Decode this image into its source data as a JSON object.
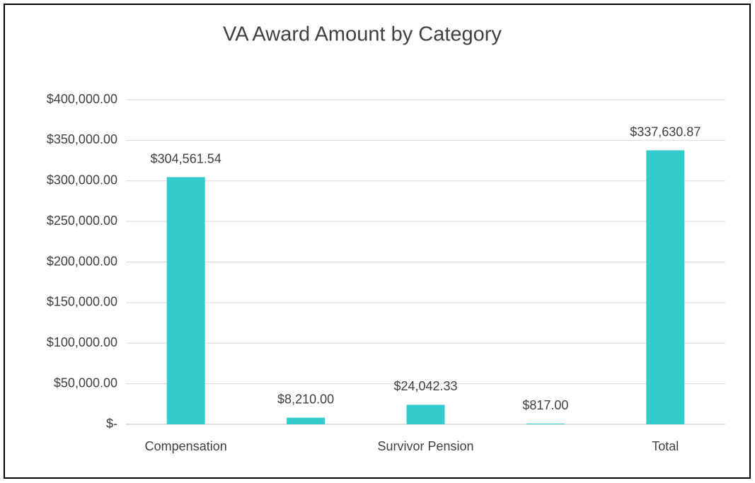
{
  "chart_data": {
    "type": "bar",
    "title": "VA Award Amount by Category",
    "categories": [
      "Compensation",
      null,
      "Survivor Pension",
      null,
      "Total"
    ],
    "values": [
      304561.54,
      8210,
      24042.33,
      817,
      337630.87
    ],
    "value_labels": [
      "$304,561.54",
      "$8,210.00",
      "$24,042.33",
      "$817.00",
      "$337,630.87"
    ],
    "color": "#33cccc",
    "ylim": [
      0,
      400000
    ],
    "yticks": [
      {
        "value": 0,
        "label": "$-"
      },
      {
        "value": 50000,
        "label": "$50,000.00"
      },
      {
        "value": 100000,
        "label": "$100,000.00"
      },
      {
        "value": 150000,
        "label": "$150,000.00"
      },
      {
        "value": 200000,
        "label": "$200,000.00"
      },
      {
        "value": 250000,
        "label": "$250,000.00"
      },
      {
        "value": 300000,
        "label": "$300,000.00"
      },
      {
        "value": 350000,
        "label": "$350,000.00"
      },
      {
        "value": 400000,
        "label": "$400,000.00"
      }
    ],
    "grid": true
  }
}
